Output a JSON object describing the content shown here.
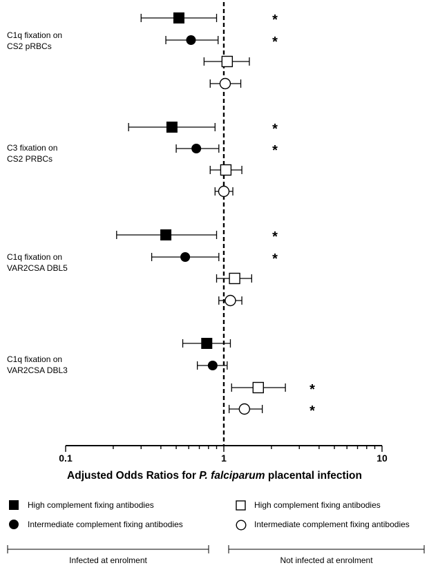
{
  "chart_data": {
    "type": "forest",
    "xlabel_prefix": "Adjusted Odds Ratios for ",
    "xlabel_italic": "P. falciparum",
    "xlabel_suffix": " placental infection",
    "x_scale": "log",
    "xlim": [
      0.1,
      10
    ],
    "xticks": [
      {
        "value": 0.1,
        "label": "0.1"
      },
      {
        "value": 1,
        "label": "1"
      },
      {
        "value": 10,
        "label": "10"
      }
    ],
    "reference_line": 1,
    "groups": [
      {
        "label_line1": "C1q fixation on",
        "label_line2": "CS2 pRBCs",
        "rows": [
          {
            "series": "high",
            "or": 0.52,
            "lo": 0.3,
            "hi": 0.9,
            "sig": "*"
          },
          {
            "series": "intermediate",
            "or": 0.62,
            "lo": 0.43,
            "hi": 0.92,
            "sig": "*"
          },
          {
            "series": "high_open",
            "or": 1.05,
            "lo": 0.75,
            "hi": 1.45,
            "sig": ""
          },
          {
            "series": "intermediate_open",
            "or": 1.02,
            "lo": 0.82,
            "hi": 1.28,
            "sig": ""
          }
        ]
      },
      {
        "label_line1": "C3 fixation on",
        "label_line2": "CS2 PRBCs",
        "rows": [
          {
            "series": "high",
            "or": 0.47,
            "lo": 0.25,
            "hi": 0.88,
            "sig": "*"
          },
          {
            "series": "intermediate",
            "or": 0.67,
            "lo": 0.5,
            "hi": 0.93,
            "sig": "*"
          },
          {
            "series": "high_open",
            "or": 1.03,
            "lo": 0.82,
            "hi": 1.3,
            "sig": ""
          },
          {
            "series": "intermediate_open",
            "or": 1.0,
            "lo": 0.88,
            "hi": 1.14,
            "sig": ""
          }
        ]
      },
      {
        "label_line1": "C1q fixation on",
        "label_line2": "VAR2CSA DBL5",
        "rows": [
          {
            "series": "high",
            "or": 0.43,
            "lo": 0.21,
            "hi": 0.9,
            "sig": "*"
          },
          {
            "series": "intermediate",
            "or": 0.57,
            "lo": 0.35,
            "hi": 0.93,
            "sig": "*"
          },
          {
            "series": "high_open",
            "or": 1.17,
            "lo": 0.9,
            "hi": 1.5,
            "sig": ""
          },
          {
            "series": "intermediate_open",
            "or": 1.1,
            "lo": 0.93,
            "hi": 1.3,
            "sig": ""
          }
        ]
      },
      {
        "label_line1": "C1q fixation on",
        "label_line2": "VAR2CSA DBL3",
        "rows": [
          {
            "series": "high",
            "or": 0.78,
            "lo": 0.55,
            "hi": 1.1,
            "sig": ""
          },
          {
            "series": "intermediate",
            "or": 0.85,
            "lo": 0.68,
            "hi": 1.05,
            "sig": ""
          },
          {
            "series": "high_open",
            "or": 1.65,
            "lo": 1.12,
            "hi": 2.45,
            "sig": "*"
          },
          {
            "series": "intermediate_open",
            "or": 1.35,
            "lo": 1.08,
            "hi": 1.75,
            "sig": "*"
          }
        ]
      }
    ],
    "legend": [
      {
        "series": "high",
        "marker": "square-filled",
        "label": "High complement fixing antibodies"
      },
      {
        "series": "intermediate",
        "marker": "circle-filled",
        "label": "Intermediate complement fixing antibodies"
      },
      {
        "series": "high_open",
        "marker": "square-open",
        "label": "High complement fixing antibodies"
      },
      {
        "series": "intermediate_open",
        "marker": "circle-open",
        "label": "Intermediate complement fixing antibodies"
      }
    ],
    "brackets": [
      {
        "label": "Infected at enrolment"
      },
      {
        "label": "Not infected at enrolment"
      }
    ]
  }
}
